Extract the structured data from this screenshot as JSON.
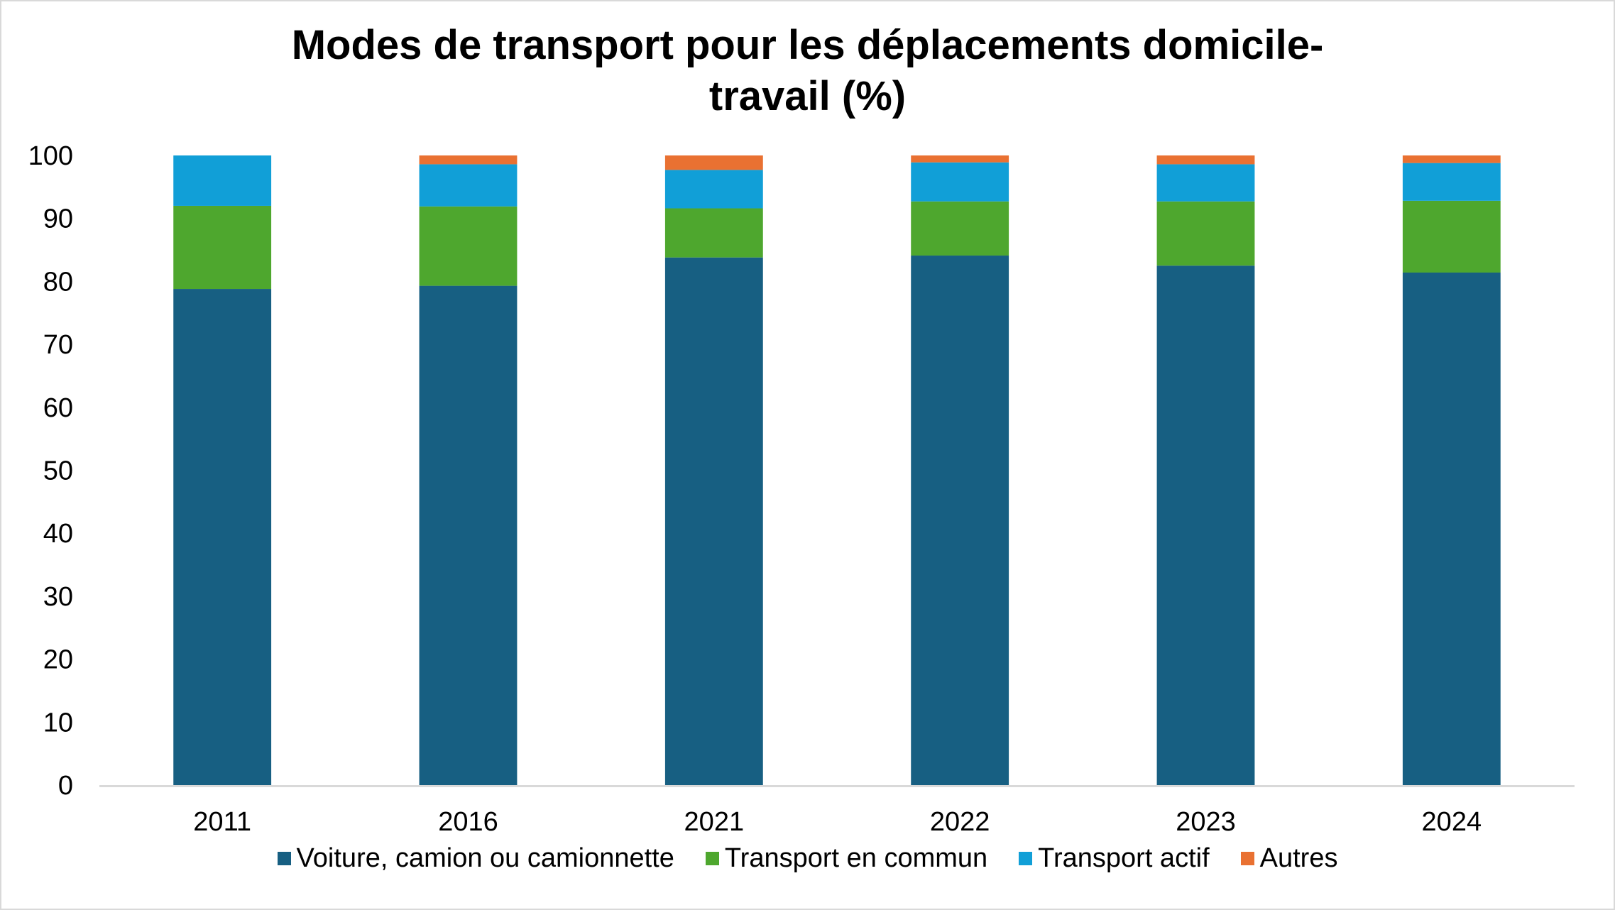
{
  "chart_data": {
    "type": "bar",
    "stacked": true,
    "title": "Modes de transport pour les déplacements domicile-travail (%)",
    "title_lines": [
      "Modes de transport pour les déplacements domicile-",
      "travail (%)"
    ],
    "xlabel": "",
    "ylabel": "",
    "ylim": [
      0,
      100
    ],
    "yticks": [
      0,
      10,
      20,
      30,
      40,
      50,
      60,
      70,
      80,
      90,
      100
    ],
    "grid": false,
    "legend_position": "bottom",
    "categories": [
      "2011",
      "2016",
      "2021",
      "2022",
      "2023",
      "2024"
    ],
    "series": [
      {
        "name": "Voiture, camion ou camionnette",
        "color": "#175f82",
        "values": [
          78.8,
          79.3,
          83.8,
          84.1,
          82.5,
          81.4
        ]
      },
      {
        "name": "Transport en commun",
        "color": "#4ea72e",
        "values": [
          13.2,
          12.6,
          7.8,
          8.6,
          10.2,
          11.4
        ]
      },
      {
        "name": "Transport actif",
        "color": "#119fd7",
        "values": [
          8.0,
          6.7,
          6.1,
          6.2,
          5.9,
          6.0
        ]
      },
      {
        "name": "Autres",
        "color": "#e97132",
        "values": [
          0.0,
          1.4,
          2.3,
          1.1,
          1.4,
          1.2
        ]
      }
    ]
  }
}
